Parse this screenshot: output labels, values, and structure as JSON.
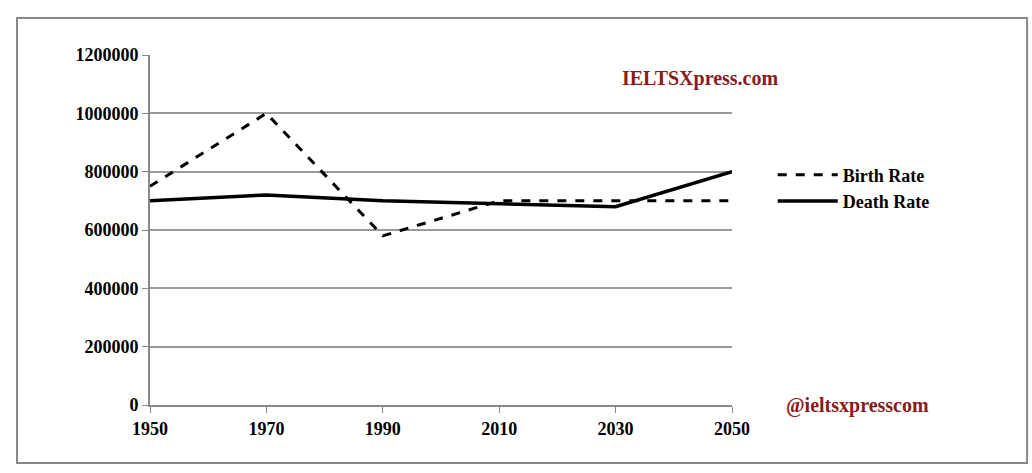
{
  "chart_data": {
    "type": "line",
    "categories": [
      "1950",
      "1970",
      "1990",
      "2010",
      "2030",
      "2050"
    ],
    "series": [
      {
        "name": "Birth Rate",
        "color": "#000000",
        "line_style": "dashed",
        "values": [
          750000,
          1000000,
          580000,
          700000,
          700000,
          700000
        ]
      },
      {
        "name": "Death Rate",
        "color": "#000000",
        "line_style": "solid",
        "values": [
          700000,
          720000,
          700000,
          690000,
          680000,
          800000
        ]
      }
    ],
    "ylim": [
      0,
      1200000
    ],
    "yticks": [
      0,
      200000,
      400000,
      600000,
      800000,
      1000000,
      1200000
    ],
    "grid": true,
    "legend": "right",
    "annotations": [
      "IELTSXpress.com",
      "@ieltsxpresscom"
    ]
  }
}
